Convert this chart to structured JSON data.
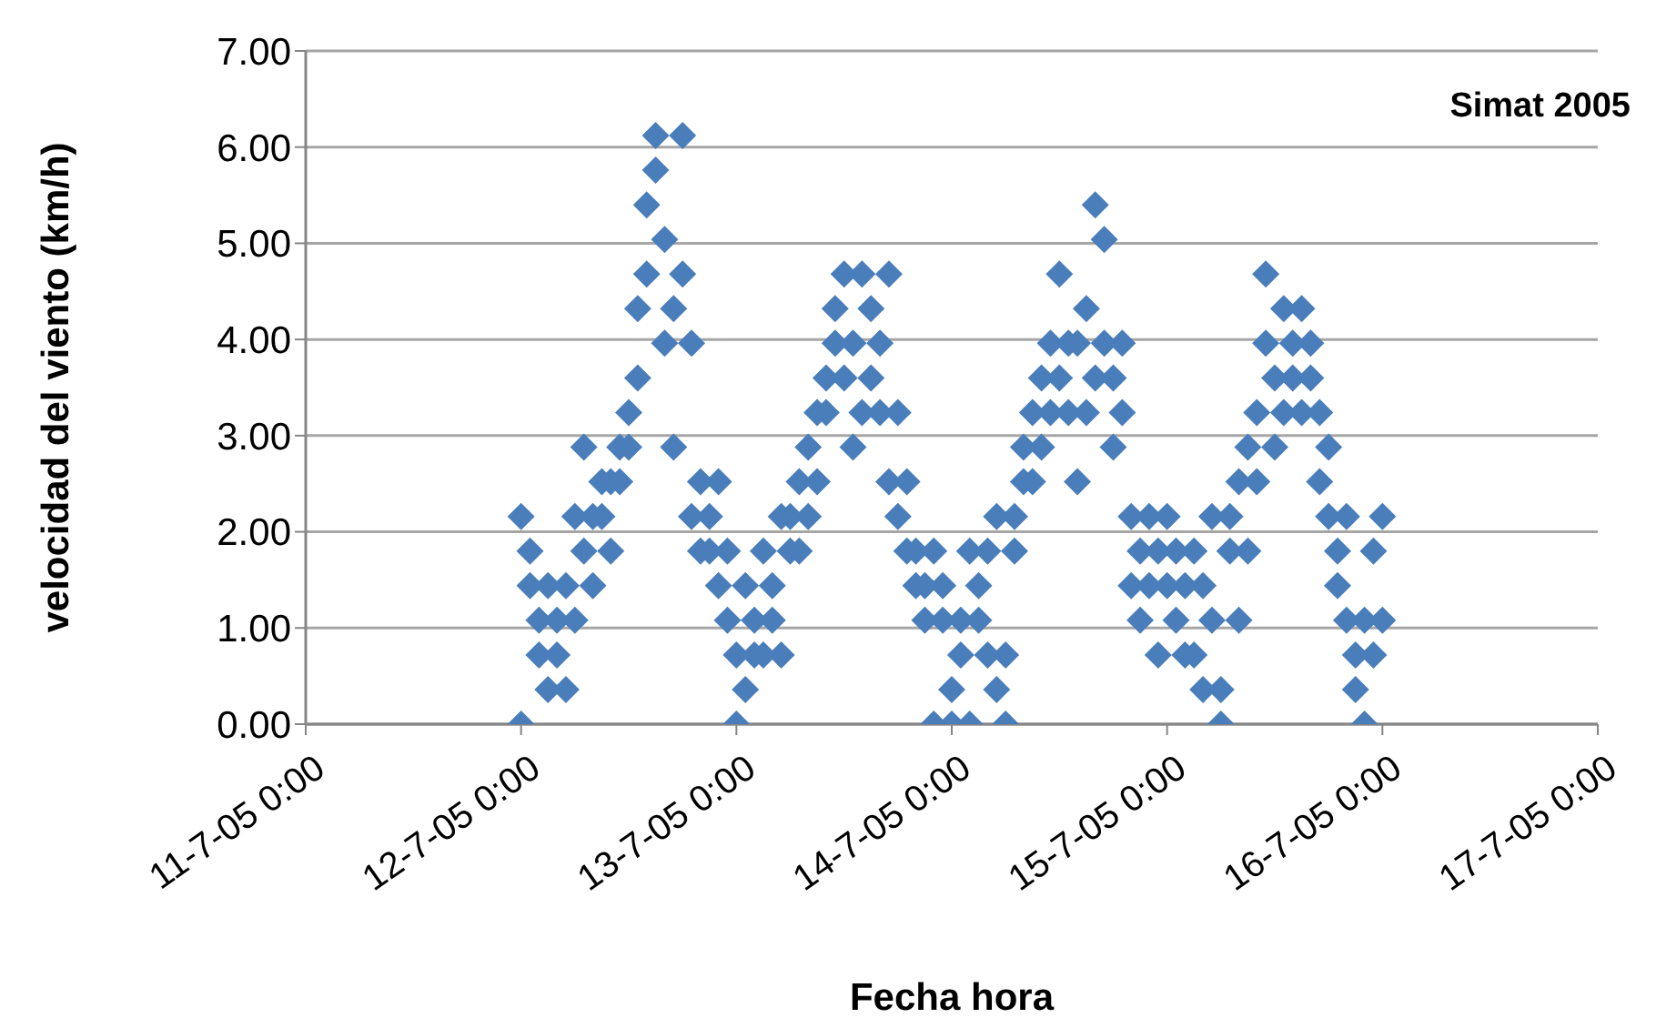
{
  "chart_data": {
    "type": "scatter",
    "xlabel": "Fecha hora",
    "ylabel": "velocidad del viento (km/h)",
    "annotations": [
      "Simat 2005"
    ],
    "grid": "y",
    "marker": "diamond",
    "legend": false,
    "xlim": [
      "2005-07-11T00:00",
      "2005-07-17T00:00"
    ],
    "xticks": [
      {
        "value": "2005-07-11T00:00",
        "label": "11-7-05 0:00"
      },
      {
        "value": "2005-07-12T00:00",
        "label": "12-7-05 0:00"
      },
      {
        "value": "2005-07-13T00:00",
        "label": "13-7-05 0:00"
      },
      {
        "value": "2005-07-14T00:00",
        "label": "14-7-05 0:00"
      },
      {
        "value": "2005-07-15T00:00",
        "label": "15-7-05 0:00"
      },
      {
        "value": "2005-07-16T00:00",
        "label": "16-7-05 0:00"
      },
      {
        "value": "2005-07-17T00:00",
        "label": "17-7-05 0:00"
      }
    ],
    "ylim": [
      0,
      7
    ],
    "yticks": [
      {
        "value": 0,
        "label": "0.00"
      },
      {
        "value": 1,
        "label": "1.00"
      },
      {
        "value": 2,
        "label": "2.00"
      },
      {
        "value": 3,
        "label": "3.00"
      },
      {
        "value": 4,
        "label": "4.00"
      },
      {
        "value": 5,
        "label": "5.00"
      },
      {
        "value": 6,
        "label": "6.00"
      },
      {
        "value": 7,
        "label": "7.00"
      }
    ],
    "series": [
      {
        "color": "#4a7ebb",
        "x": [
          "2005-07-12T00:00",
          "2005-07-12T00:00",
          "2005-07-12T01:00",
          "2005-07-12T01:00",
          "2005-07-12T02:00",
          "2005-07-12T02:00",
          "2005-07-12T03:00",
          "2005-07-12T03:00",
          "2005-07-12T04:00",
          "2005-07-12T04:00",
          "2005-07-12T05:00",
          "2005-07-12T05:00",
          "2005-07-12T06:00",
          "2005-07-12T06:00",
          "2005-07-12T07:00",
          "2005-07-12T07:00",
          "2005-07-12T08:00",
          "2005-07-12T08:00",
          "2005-07-12T09:00",
          "2005-07-12T09:00",
          "2005-07-12T10:00",
          "2005-07-12T10:00",
          "2005-07-12T11:00",
          "2005-07-12T11:00",
          "2005-07-12T12:00",
          "2005-07-12T12:00",
          "2005-07-12T13:00",
          "2005-07-12T13:00",
          "2005-07-12T14:00",
          "2005-07-12T14:00",
          "2005-07-12T15:00",
          "2005-07-12T15:00",
          "2005-07-12T16:00",
          "2005-07-12T16:00",
          "2005-07-12T17:00",
          "2005-07-12T17:00",
          "2005-07-12T18:00",
          "2005-07-12T18:00",
          "2005-07-12T19:00",
          "2005-07-12T19:00",
          "2005-07-12T20:00",
          "2005-07-12T20:00",
          "2005-07-12T21:00",
          "2005-07-12T21:00",
          "2005-07-12T22:00",
          "2005-07-12T22:00",
          "2005-07-12T23:00",
          "2005-07-12T23:00",
          "2005-07-13T00:00",
          "2005-07-13T00:00",
          "2005-07-13T01:00",
          "2005-07-13T01:00",
          "2005-07-13T02:00",
          "2005-07-13T02:00",
          "2005-07-13T03:00",
          "2005-07-13T03:00",
          "2005-07-13T04:00",
          "2005-07-13T04:00",
          "2005-07-13T05:00",
          "2005-07-13T05:00",
          "2005-07-13T06:00",
          "2005-07-13T06:00",
          "2005-07-13T07:00",
          "2005-07-13T07:00",
          "2005-07-13T08:00",
          "2005-07-13T08:00",
          "2005-07-13T09:00",
          "2005-07-13T09:00",
          "2005-07-13T10:00",
          "2005-07-13T10:00",
          "2005-07-13T11:00",
          "2005-07-13T11:00",
          "2005-07-13T12:00",
          "2005-07-13T12:00",
          "2005-07-13T13:00",
          "2005-07-13T13:00",
          "2005-07-13T14:00",
          "2005-07-13T14:00",
          "2005-07-13T15:00",
          "2005-07-13T15:00",
          "2005-07-13T16:00",
          "2005-07-13T16:00",
          "2005-07-13T17:00",
          "2005-07-13T17:00",
          "2005-07-13T18:00",
          "2005-07-13T18:00",
          "2005-07-13T19:00",
          "2005-07-13T19:00",
          "2005-07-13T20:00",
          "2005-07-13T20:00",
          "2005-07-13T21:00",
          "2005-07-13T21:00",
          "2005-07-13T22:00",
          "2005-07-13T22:00",
          "2005-07-13T23:00",
          "2005-07-13T23:00",
          "2005-07-14T00:00",
          "2005-07-14T00:00",
          "2005-07-14T01:00",
          "2005-07-14T01:00",
          "2005-07-14T02:00",
          "2005-07-14T02:00",
          "2005-07-14T03:00",
          "2005-07-14T03:00",
          "2005-07-14T04:00",
          "2005-07-14T04:00",
          "2005-07-14T05:00",
          "2005-07-14T05:00",
          "2005-07-14T06:00",
          "2005-07-14T06:00",
          "2005-07-14T07:00",
          "2005-07-14T07:00",
          "2005-07-14T08:00",
          "2005-07-14T08:00",
          "2005-07-14T09:00",
          "2005-07-14T09:00",
          "2005-07-14T10:00",
          "2005-07-14T10:00",
          "2005-07-14T11:00",
          "2005-07-14T11:00",
          "2005-07-14T12:00",
          "2005-07-14T12:00",
          "2005-07-14T13:00",
          "2005-07-14T13:00",
          "2005-07-14T14:00",
          "2005-07-14T14:00",
          "2005-07-14T15:00",
          "2005-07-14T15:00",
          "2005-07-14T16:00",
          "2005-07-14T16:00",
          "2005-07-14T17:00",
          "2005-07-14T17:00",
          "2005-07-14T18:00",
          "2005-07-14T18:00",
          "2005-07-14T19:00",
          "2005-07-14T19:00",
          "2005-07-14T20:00",
          "2005-07-14T20:00",
          "2005-07-14T21:00",
          "2005-07-14T21:00",
          "2005-07-14T22:00",
          "2005-07-14T22:00",
          "2005-07-14T23:00",
          "2005-07-14T23:00",
          "2005-07-15T00:00",
          "2005-07-15T00:00",
          "2005-07-15T01:00",
          "2005-07-15T01:00",
          "2005-07-15T02:00",
          "2005-07-15T02:00",
          "2005-07-15T03:00",
          "2005-07-15T03:00",
          "2005-07-15T04:00",
          "2005-07-15T04:00",
          "2005-07-15T05:00",
          "2005-07-15T05:00",
          "2005-07-15T06:00",
          "2005-07-15T06:00",
          "2005-07-15T07:00",
          "2005-07-15T07:00",
          "2005-07-15T08:00",
          "2005-07-15T08:00",
          "2005-07-15T09:00",
          "2005-07-15T09:00",
          "2005-07-15T10:00",
          "2005-07-15T10:00",
          "2005-07-15T11:00",
          "2005-07-15T11:00",
          "2005-07-15T12:00",
          "2005-07-15T12:00",
          "2005-07-15T13:00",
          "2005-07-15T13:00",
          "2005-07-15T14:00",
          "2005-07-15T14:00",
          "2005-07-15T15:00",
          "2005-07-15T15:00",
          "2005-07-15T16:00",
          "2005-07-15T16:00",
          "2005-07-15T17:00",
          "2005-07-15T17:00",
          "2005-07-15T18:00",
          "2005-07-15T18:00",
          "2005-07-15T19:00",
          "2005-07-15T19:00",
          "2005-07-15T20:00",
          "2005-07-15T20:00",
          "2005-07-15T21:00",
          "2005-07-15T21:00",
          "2005-07-15T22:00",
          "2005-07-15T22:00",
          "2005-07-15T23:00",
          "2005-07-15T23:00",
          "2005-07-16T00:00",
          "2005-07-16T00:00"
        ],
        "values": [
          0.0,
          2.16,
          1.44,
          1.8,
          0.72,
          1.08,
          0.36,
          1.44,
          1.08,
          0.72,
          1.44,
          0.36,
          1.08,
          2.16,
          1.8,
          2.88,
          2.16,
          1.44,
          2.52,
          2.16,
          1.8,
          2.52,
          2.88,
          2.52,
          3.24,
          2.88,
          4.32,
          3.6,
          5.4,
          4.68,
          6.12,
          5.76,
          5.04,
          3.96,
          4.32,
          2.88,
          6.12,
          4.68,
          3.96,
          2.16,
          2.52,
          1.8,
          2.16,
          1.8,
          2.52,
          1.44,
          1.08,
          1.8,
          0.0,
          0.72,
          0.36,
          1.44,
          1.08,
          0.72,
          1.8,
          0.72,
          1.44,
          1.08,
          2.16,
          0.72,
          1.8,
          2.16,
          2.52,
          1.8,
          2.88,
          2.16,
          3.24,
          2.52,
          3.6,
          3.24,
          4.32,
          3.96,
          3.6,
          4.68,
          3.96,
          2.88,
          4.68,
          3.24,
          4.32,
          3.6,
          3.96,
          3.24,
          4.68,
          2.52,
          3.24,
          2.16,
          1.8,
          2.52,
          1.44,
          1.8,
          1.08,
          1.44,
          0.0,
          1.8,
          1.08,
          1.44,
          0.0,
          0.36,
          1.08,
          0.72,
          0.0,
          1.8,
          1.44,
          1.08,
          0.72,
          1.8,
          0.36,
          2.16,
          0.0,
          0.72,
          2.16,
          1.8,
          2.88,
          2.52,
          3.24,
          2.52,
          2.88,
          3.6,
          3.96,
          3.24,
          4.68,
          3.6,
          3.24,
          3.96,
          3.96,
          2.52,
          3.24,
          4.32,
          5.4,
          3.6,
          5.04,
          3.96,
          3.6,
          2.88,
          3.96,
          3.24,
          2.16,
          1.44,
          1.8,
          1.08,
          2.16,
          1.44,
          1.8,
          0.72,
          1.44,
          2.16,
          1.08,
          1.8,
          0.72,
          1.44,
          1.8,
          0.72,
          1.44,
          0.36,
          2.16,
          1.08,
          0.0,
          0.36,
          1.8,
          2.16,
          2.52,
          1.08,
          2.88,
          1.8,
          3.24,
          2.52,
          4.68,
          3.96,
          3.6,
          2.88,
          4.32,
          3.24,
          3.96,
          3.6,
          4.32,
          3.24,
          3.6,
          3.96,
          2.52,
          3.24,
          2.88,
          2.16,
          1.8,
          1.44,
          1.08,
          2.16,
          0.36,
          0.72,
          0.0,
          1.08,
          1.8,
          0.72,
          2.16,
          1.08
        ]
      }
    ]
  }
}
